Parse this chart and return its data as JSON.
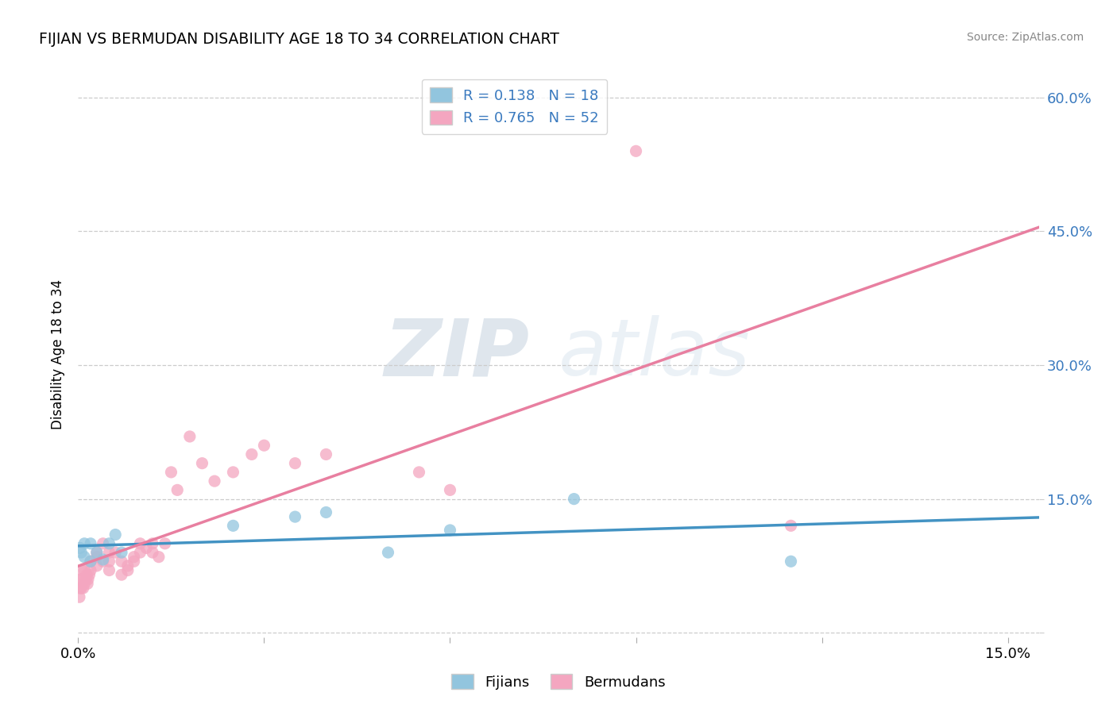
{
  "title": "FIJIAN VS BERMUDAN DISABILITY AGE 18 TO 34 CORRELATION CHART",
  "source": "Source: ZipAtlas.com",
  "ylabel": "Disability Age 18 to 34",
  "xlim": [
    0.0,
    0.155
  ],
  "ylim": [
    -0.005,
    0.63
  ],
  "fijian_R": 0.138,
  "fijian_N": 18,
  "bermudan_R": 0.765,
  "bermudan_N": 52,
  "fijian_color": "#92c5de",
  "bermudan_color": "#f4a6c0",
  "fijian_line_color": "#4393c3",
  "bermudan_line_color": "#e87fa0",
  "watermark_text": "ZIPatlas",
  "fijian_x": [
    0.0003,
    0.0005,
    0.001,
    0.001,
    0.002,
    0.002,
    0.003,
    0.004,
    0.005,
    0.006,
    0.007,
    0.025,
    0.035,
    0.04,
    0.05,
    0.06,
    0.08,
    0.115
  ],
  "fijian_y": [
    0.095,
    0.09,
    0.085,
    0.1,
    0.1,
    0.08,
    0.09,
    0.082,
    0.1,
    0.11,
    0.09,
    0.12,
    0.13,
    0.135,
    0.09,
    0.115,
    0.15,
    0.08
  ],
  "bermudan_x": [
    0.0002,
    0.0003,
    0.0004,
    0.0005,
    0.0006,
    0.0007,
    0.0008,
    0.001,
    0.001,
    0.0012,
    0.0014,
    0.0015,
    0.0016,
    0.0018,
    0.002,
    0.002,
    0.003,
    0.003,
    0.003,
    0.004,
    0.004,
    0.005,
    0.005,
    0.005,
    0.006,
    0.007,
    0.007,
    0.008,
    0.008,
    0.009,
    0.009,
    0.01,
    0.01,
    0.011,
    0.012,
    0.012,
    0.013,
    0.014,
    0.015,
    0.016,
    0.018,
    0.02,
    0.022,
    0.025,
    0.028,
    0.03,
    0.035,
    0.04,
    0.055,
    0.06,
    0.09,
    0.115
  ],
  "bermudan_y": [
    0.04,
    0.05,
    0.06,
    0.05,
    0.07,
    0.06,
    0.05,
    0.055,
    0.07,
    0.06,
    0.065,
    0.055,
    0.06,
    0.065,
    0.07,
    0.08,
    0.09,
    0.075,
    0.085,
    0.08,
    0.1,
    0.09,
    0.07,
    0.08,
    0.09,
    0.065,
    0.08,
    0.07,
    0.075,
    0.08,
    0.085,
    0.09,
    0.1,
    0.095,
    0.1,
    0.09,
    0.085,
    0.1,
    0.18,
    0.16,
    0.22,
    0.19,
    0.17,
    0.18,
    0.2,
    0.21,
    0.19,
    0.2,
    0.18,
    0.16,
    0.54,
    0.12
  ],
  "xticks": [
    0.0,
    0.03,
    0.06,
    0.09,
    0.12,
    0.15
  ],
  "xtick_labels": [
    "0.0%",
    "",
    "",
    "",
    "",
    "15.0%"
  ],
  "yticks": [
    0.0,
    0.15,
    0.3,
    0.45,
    0.6
  ],
  "ytick_labels_right": [
    "",
    "15.0%",
    "30.0%",
    "45.0%",
    "60.0%"
  ]
}
